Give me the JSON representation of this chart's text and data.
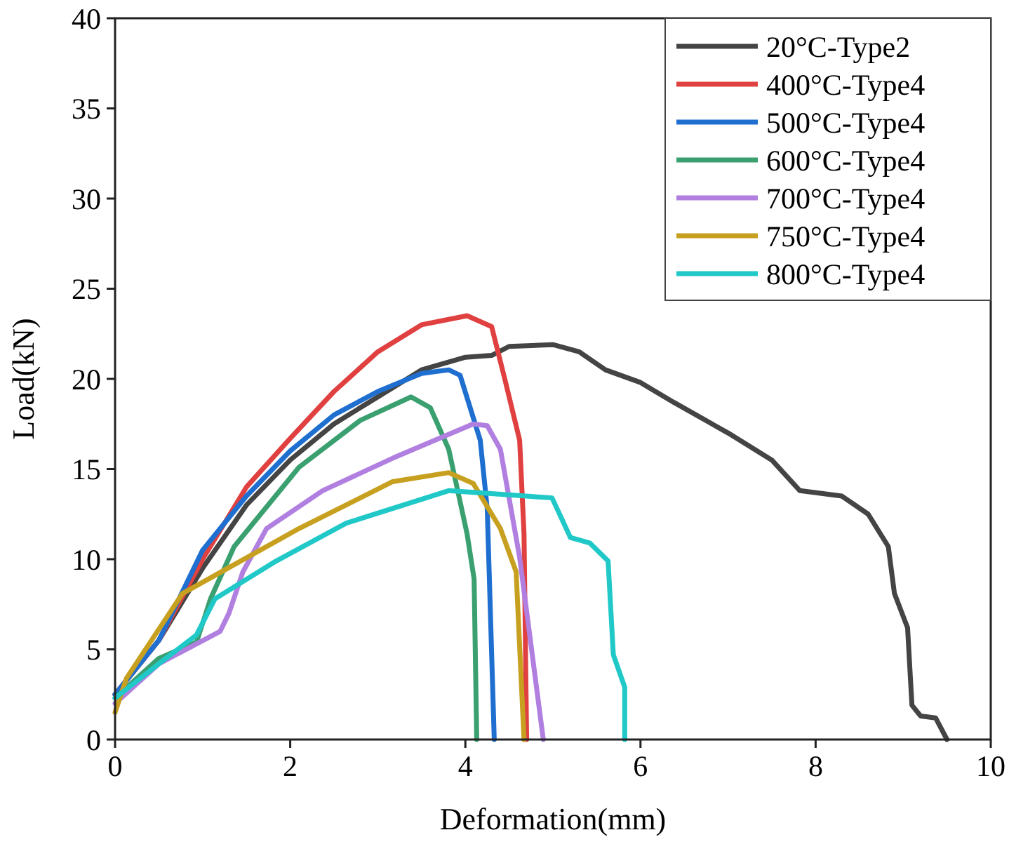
{
  "chart_data": {
    "type": "line",
    "xlabel": "Deformation(mm)",
    "ylabel": "Load(kN)",
    "xlim": [
      0,
      10
    ],
    "ylim": [
      0,
      40
    ],
    "xticks": [
      0,
      2,
      4,
      6,
      8,
      10
    ],
    "yticks": [
      0,
      5,
      10,
      15,
      20,
      25,
      30,
      35,
      40
    ],
    "grid": false,
    "legend": "top right",
    "marker": "none",
    "line_style": "solid",
    "series": [
      {
        "name": "20°C-Type2",
        "color": "#444444",
        "x": [
          0,
          0.5,
          1,
          1.5,
          2,
          2.5,
          3,
          3.5,
          4,
          4.3,
          4.5,
          5,
          5.3,
          5.6,
          6,
          6.38,
          7,
          7.5,
          7.82,
          8.3,
          8.6,
          8.83,
          8.9,
          9.05,
          9.1,
          9.2,
          9.37,
          9.5
        ],
        "values": [
          2.5,
          5.5,
          9.5,
          13,
          15.5,
          17.5,
          19,
          20.5,
          21.2,
          21.3,
          21.8,
          21.9,
          21.5,
          20.5,
          19.8,
          18.7,
          17,
          15.5,
          13.8,
          13.5,
          12.5,
          10.7,
          8.1,
          6.2,
          1.9,
          1.3,
          1.2,
          0
        ]
      },
      {
        "name": "400°C-Type4",
        "color": "#e04040",
        "x": [
          0,
          0.5,
          1,
          1.5,
          2,
          2.5,
          3,
          3.5,
          4.02,
          4.3,
          4.45,
          4.62,
          4.67,
          4.7
        ],
        "values": [
          2.5,
          5.5,
          10,
          14,
          16.7,
          19.3,
          21.5,
          23,
          23.5,
          22.9,
          20,
          16.6,
          11.4,
          0
        ]
      },
      {
        "name": "500°C-Type4",
        "color": "#1f6fd0",
        "x": [
          0,
          0.5,
          1,
          1.5,
          2,
          2.5,
          3,
          3.5,
          3.81,
          3.94,
          4.17,
          4.25,
          4.33
        ],
        "values": [
          2.5,
          5.5,
          10.5,
          13.5,
          16,
          18,
          19.3,
          20.3,
          20.5,
          20.2,
          16.6,
          12.8,
          0
        ]
      },
      {
        "name": "600°C-Type4",
        "color": "#3aa070",
        "x": [
          0,
          0.5,
          0.93,
          1.09,
          1.36,
          2.1,
          2.8,
          3.38,
          3.6,
          3.81,
          4.02,
          4.1,
          4.13
        ],
        "values": [
          2.3,
          4.5,
          5.4,
          7.8,
          10.7,
          15.1,
          17.7,
          19,
          18.4,
          16.1,
          11.4,
          8.9,
          0
        ]
      },
      {
        "name": "700°C-Type4",
        "color": "#b07fe0",
        "x": [
          0,
          0.5,
          1.2,
          1.3,
          1.46,
          1.73,
          2.37,
          3.17,
          4.09,
          4.25,
          4.4,
          4.62,
          4.89
        ],
        "values": [
          2,
          4.2,
          6,
          7,
          9.3,
          11.7,
          13.8,
          15.6,
          17.5,
          17.4,
          16.1,
          10.1,
          0
        ]
      },
      {
        "name": "750°C-Type4",
        "color": "#c8a020",
        "x": [
          0,
          0.13,
          0.77,
          1.14,
          2.1,
          3.17,
          3.81,
          4.09,
          4.4,
          4.58,
          4.67
        ],
        "values": [
          1.5,
          3.4,
          8.1,
          9.1,
          11.7,
          14.3,
          14.8,
          14.2,
          11.7,
          9.3,
          0
        ]
      },
      {
        "name": "800°C-Type4",
        "color": "#20c8c8",
        "x": [
          0,
          0.5,
          0.93,
          1.14,
          1.84,
          2.64,
          3.81,
          4.99,
          5.2,
          5.42,
          5.63,
          5.69,
          5.82,
          5.82
        ],
        "values": [
          2.3,
          4.2,
          5.8,
          7.8,
          9.9,
          12,
          13.8,
          13.4,
          11.2,
          10.9,
          9.9,
          4.7,
          2.9,
          0
        ]
      }
    ]
  }
}
